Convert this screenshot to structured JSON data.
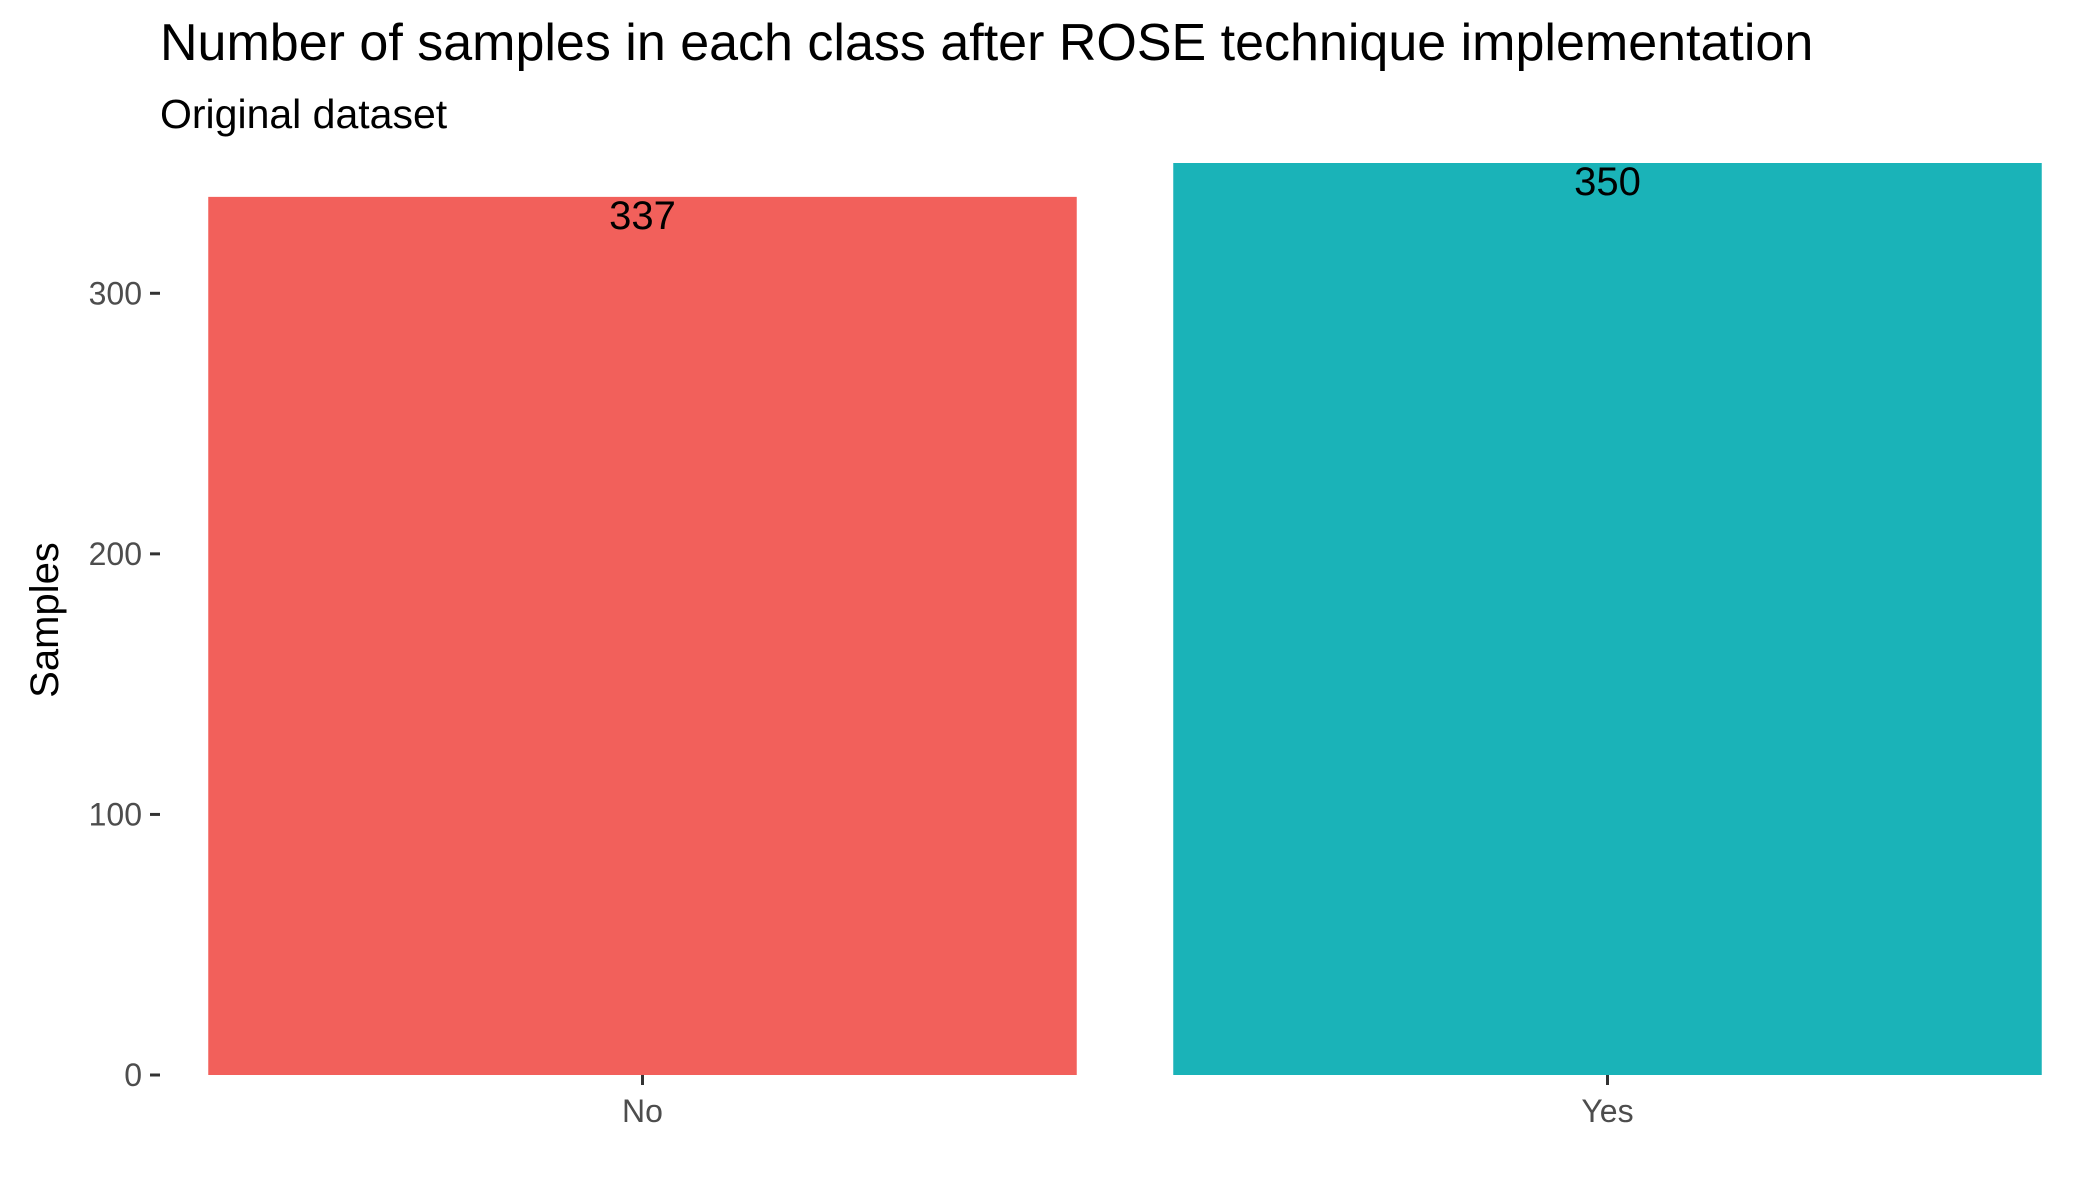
{
  "chart_data": {
    "type": "bar",
    "title": "Number of samples in each class after ROSE technique implementation",
    "subtitle": "Original dataset",
    "xlabel": "",
    "ylabel": "Samples",
    "categories": [
      "No",
      "Yes"
    ],
    "values": [
      337,
      350
    ],
    "data_labels": [
      "337",
      "350"
    ],
    "colors": [
      "#F2605B",
      "#1AB3B8"
    ],
    "ylim": [
      0,
      350
    ],
    "yticks": [
      0,
      100,
      200,
      300
    ],
    "ytick_labels": [
      "0",
      "100",
      "200",
      "300"
    ],
    "grid": false,
    "legend": "none"
  }
}
